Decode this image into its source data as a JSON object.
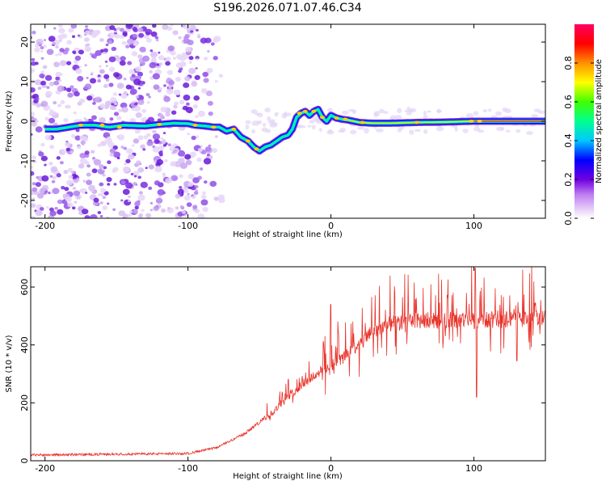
{
  "title": "S196.2026.071.07.46.C34",
  "chart_data": [
    {
      "type": "heatmap",
      "xlabel": "Height of straight line (km)",
      "ylabel": "Frequency (Hz)",
      "xlim": [
        -210,
        150
      ],
      "ylim": [
        -24.5,
        24.5
      ],
      "xticks": [
        -200,
        -100,
        0,
        100
      ],
      "yticks": [
        -20,
        -10,
        0,
        10,
        20
      ],
      "grid": false,
      "ridge": {
        "x": [
          -192,
          -175,
          -165,
          -155,
          -145,
          -130,
          -120,
          -110,
          -100,
          -95,
          -88,
          -82,
          -78,
          -73,
          -68,
          -63,
          -58,
          -54,
          -50,
          -46,
          -42,
          -38,
          -34,
          -30,
          -27,
          -24,
          -21,
          -18,
          -15,
          -12,
          -9,
          -6,
          -3,
          0,
          4,
          8,
          12,
          20,
          30,
          40,
          60,
          80,
          100,
          120,
          150
        ],
        "y": [
          -2,
          -1,
          -1,
          -1.5,
          -1,
          -1.2,
          -0.8,
          -0.5,
          -0.6,
          -1,
          -1.2,
          -1.5,
          -1.5,
          -2.5,
          -2,
          -4,
          -5,
          -6.5,
          -7.5,
          -6.5,
          -6,
          -5,
          -4,
          -3.5,
          -2,
          1,
          2,
          2.5,
          1.5,
          2.5,
          3,
          1,
          0,
          1.5,
          0.8,
          0.5,
          0.3,
          -0.3,
          -0.5,
          -0.5,
          -0.3,
          -0.2,
          0,
          0,
          0
        ]
      },
      "colorbar": {
        "label": "Normalized spectral amplitude",
        "range": [
          0,
          1
        ],
        "ticks": [
          "0.0",
          "0.2",
          "0.4",
          "0.6",
          "0.8"
        ]
      }
    },
    {
      "type": "line",
      "xlabel": "Height of straight line (km)",
      "ylabel": "SNR (10 * v/v)",
      "xlim": [
        -210,
        150
      ],
      "ylim": [
        0,
        670
      ],
      "xticks": [
        -200,
        -100,
        0,
        100
      ],
      "yticks": [
        0,
        200,
        400,
        600
      ],
      "grid": false,
      "series": [
        {
          "name": "SNR",
          "color": "#e8322a",
          "trend_x": [
            -210,
            -100,
            -80,
            -60,
            -40,
            -30,
            -20,
            -10,
            0,
            10,
            20,
            30,
            40,
            60,
            80,
            100,
            150
          ],
          "trend_y": [
            20,
            25,
            45,
            95,
            170,
            220,
            265,
            300,
            330,
            360,
            400,
            450,
            470,
            485,
            485,
            485,
            490
          ],
          "spikes": [
            {
              "x": 0,
              "y": 540
            },
            {
              "x": 101,
              "y": 665
            },
            {
              "x": 102,
              "y": 220
            },
            {
              "x": 130,
              "y": 345
            }
          ]
        }
      ]
    }
  ]
}
